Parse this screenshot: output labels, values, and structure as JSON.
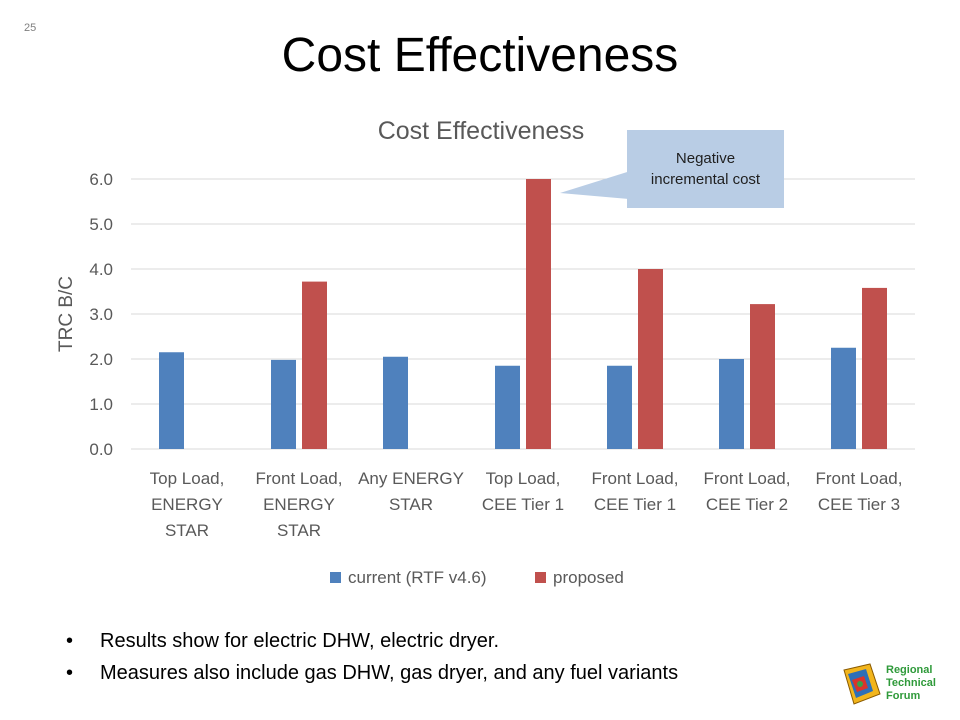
{
  "slide": {
    "number": "25",
    "title": "Cost Effectiveness"
  },
  "callout": {
    "text": "Negative incremental cost"
  },
  "bullets": [
    "Results show for electric DHW, electric dryer.",
    "Measures also include gas DHW, gas dryer, and any fuel variants"
  ],
  "logo": {
    "lines": [
      "Regional",
      "Technical",
      "Forum"
    ],
    "icon": "rtf-logo-icon"
  },
  "chart_data": {
    "type": "bar",
    "title": "Cost Effectiveness",
    "xlabel": "",
    "ylabel": "TRC B/C",
    "ylim": [
      0,
      6.0
    ],
    "yticks": [
      "0.0",
      "1.0",
      "2.0",
      "3.0",
      "4.0",
      "5.0",
      "6.0"
    ],
    "grid": true,
    "legend_position": "bottom",
    "categories": [
      [
        "Top Load,",
        "ENERGY",
        "STAR"
      ],
      [
        "Front Load,",
        "ENERGY",
        "STAR"
      ],
      [
        "Any ENERGY",
        "STAR"
      ],
      [
        "Top Load,",
        "CEE Tier 1"
      ],
      [
        "Front Load,",
        "CEE Tier 1"
      ],
      [
        "Front Load,",
        "CEE Tier 2"
      ],
      [
        "Front Load,",
        "CEE Tier 3"
      ]
    ],
    "series": [
      {
        "name": "current (RTF v4.6)",
        "color": "#4f81bd",
        "values": [
          2.15,
          1.98,
          2.05,
          1.85,
          1.85,
          2.0,
          2.25
        ]
      },
      {
        "name": "proposed",
        "color": "#c0504d",
        "values": [
          null,
          3.72,
          null,
          6.0,
          4.0,
          3.22,
          3.58
        ]
      }
    ]
  }
}
